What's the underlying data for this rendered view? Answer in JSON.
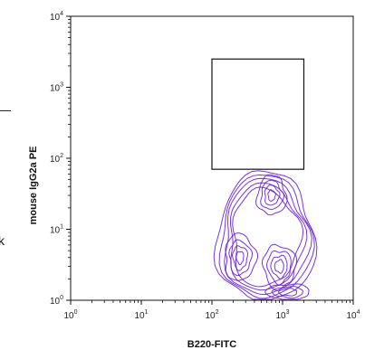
{
  "chart_data": {
    "type": "contour",
    "xlabel": "B220-FITC",
    "ylabel": "mouse IgG2a PE",
    "x_scale": "log",
    "y_scale": "log",
    "xlim": [
      1,
      10000
    ],
    "ylim": [
      1,
      10000
    ],
    "x_ticks": [
      {
        "base": "10",
        "exp": "0",
        "value": 1
      },
      {
        "base": "10",
        "exp": "1",
        "value": 10
      },
      {
        "base": "10",
        "exp": "2",
        "value": 100
      },
      {
        "base": "10",
        "exp": "3",
        "value": 1000
      },
      {
        "base": "10",
        "exp": "4",
        "value": 10000
      }
    ],
    "y_ticks": [
      {
        "base": "10",
        "exp": "0",
        "value": 1
      },
      {
        "base": "10",
        "exp": "1",
        "value": 10
      },
      {
        "base": "10",
        "exp": "2",
        "value": 100
      },
      {
        "base": "10",
        "exp": "3",
        "value": 1000
      },
      {
        "base": "10",
        "exp": "4",
        "value": 10000
      }
    ],
    "gate": {
      "x": [
        100,
        2000
      ],
      "y": [
        70,
        2500
      ]
    },
    "contour_color": "#6a1fd1",
    "population_centers": [
      {
        "x": 700,
        "y": 30
      },
      {
        "x": 250,
        "y": 4
      },
      {
        "x": 900,
        "y": 3
      },
      {
        "x": 1200,
        "y": 1.3
      }
    ],
    "grid": false
  },
  "edge_text": {
    "dash": "—",
    "k": "k"
  }
}
